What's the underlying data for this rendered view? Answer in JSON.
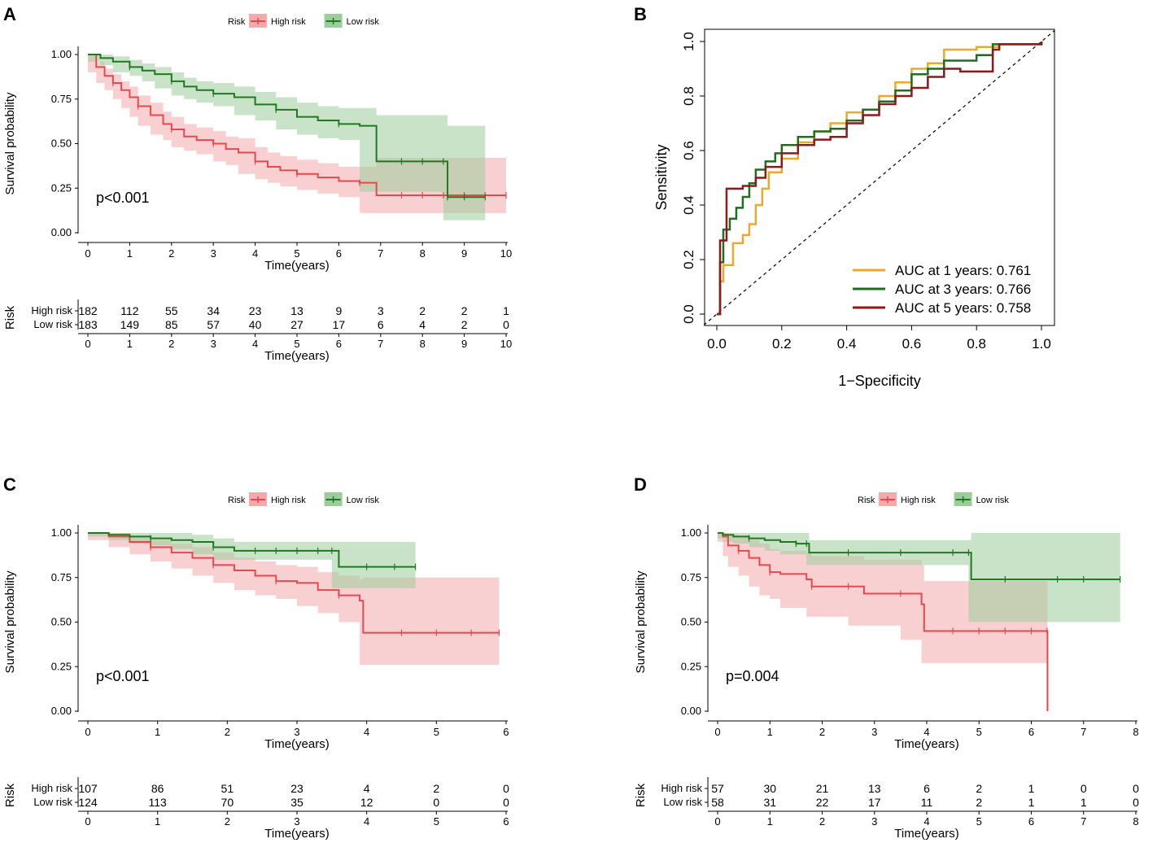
{
  "colors": {
    "high": "#e5484d",
    "low": "#1f7a1f",
    "high_fill": "#f4a9ab",
    "low_fill": "#9ccc9c",
    "roc1": "#e8a92e",
    "roc3": "#1f6e1f",
    "roc5": "#8b1a1a"
  },
  "chart_data": [
    {
      "panel": "A",
      "type": "line",
      "legend_title": "Risk",
      "legend": [
        "High risk",
        "Low risk"
      ],
      "ylabel": "Survival probability",
      "xlabel": "Time(years)",
      "xlim": [
        0,
        10
      ],
      "ylim": [
        0,
        1
      ],
      "xticks": [
        "0",
        "1",
        "2",
        "3",
        "4",
        "5",
        "6",
        "7",
        "8",
        "9",
        "10"
      ],
      "yticks": [
        "0.00",
        "0.25",
        "0.50",
        "0.75",
        "1.00"
      ],
      "pvalue": "p<0.001",
      "series": [
        {
          "name": "High risk",
          "x": [
            0,
            0.2,
            0.4,
            0.6,
            0.8,
            1.0,
            1.2,
            1.5,
            1.8,
            2.0,
            2.3,
            2.6,
            3.0,
            3.3,
            3.6,
            4.0,
            4.3,
            4.6,
            5.0,
            5.5,
            6.0,
            6.5,
            6.9,
            7.5,
            8.0,
            8.5,
            9.0,
            9.5,
            10.0
          ],
          "y": [
            1.0,
            0.93,
            0.88,
            0.84,
            0.8,
            0.76,
            0.71,
            0.66,
            0.61,
            0.58,
            0.54,
            0.52,
            0.5,
            0.47,
            0.45,
            0.4,
            0.37,
            0.35,
            0.33,
            0.31,
            0.29,
            0.28,
            0.21,
            0.21,
            0.21,
            0.21,
            0.21,
            0.21,
            0.21
          ],
          "lower": [
            1.0,
            0.9,
            0.84,
            0.8,
            0.75,
            0.7,
            0.65,
            0.6,
            0.55,
            0.52,
            0.48,
            0.46,
            0.44,
            0.4,
            0.38,
            0.33,
            0.3,
            0.28,
            0.26,
            0.24,
            0.22,
            0.2,
            0.11,
            0.11,
            0.11,
            0.11,
            0.11,
            0.11,
            0.11
          ],
          "upper": [
            1.0,
            0.96,
            0.92,
            0.89,
            0.85,
            0.82,
            0.77,
            0.73,
            0.68,
            0.65,
            0.61,
            0.59,
            0.57,
            0.54,
            0.53,
            0.48,
            0.45,
            0.43,
            0.41,
            0.39,
            0.37,
            0.37,
            0.42,
            0.42,
            0.42,
            0.42,
            0.42,
            0.42,
            0.42
          ]
        },
        {
          "name": "Low risk",
          "x": [
            0,
            0.3,
            0.6,
            1.0,
            1.3,
            1.6,
            2.0,
            2.3,
            2.6,
            3.0,
            3.5,
            4.0,
            4.5,
            5.0,
            5.5,
            6.0,
            6.5,
            6.9,
            7.5,
            8.0,
            8.5,
            8.6,
            9.0,
            9.5
          ],
          "y": [
            1.0,
            0.98,
            0.96,
            0.93,
            0.91,
            0.89,
            0.85,
            0.82,
            0.8,
            0.78,
            0.76,
            0.72,
            0.69,
            0.65,
            0.63,
            0.61,
            0.6,
            0.4,
            0.4,
            0.4,
            0.4,
            0.2,
            0.2,
            0.2
          ],
          "lower": [
            1.0,
            0.96,
            0.94,
            0.9,
            0.88,
            0.85,
            0.81,
            0.77,
            0.75,
            0.73,
            0.71,
            0.66,
            0.63,
            0.58,
            0.55,
            0.53,
            0.52,
            0.23,
            0.23,
            0.23,
            0.23,
            0.07,
            0.07,
            0.07
          ],
          "upper": [
            1.0,
            1.0,
            0.99,
            0.97,
            0.95,
            0.93,
            0.9,
            0.87,
            0.85,
            0.84,
            0.82,
            0.79,
            0.76,
            0.73,
            0.71,
            0.7,
            0.7,
            0.66,
            0.66,
            0.66,
            0.66,
            0.6,
            0.6,
            0.6
          ]
        }
      ],
      "risk_table": {
        "row_labels": [
          "High risk",
          "Low risk"
        ],
        "axis_label": "Risk",
        "rows": [
          [
            "182",
            "112",
            "55",
            "34",
            "23",
            "13",
            "9",
            "3",
            "2",
            "2",
            "1"
          ],
          [
            "183",
            "149",
            "85",
            "57",
            "40",
            "27",
            "17",
            "6",
            "4",
            "2",
            "0"
          ]
        ]
      }
    },
    {
      "panel": "B",
      "type": "line",
      "xlabel": "1−Specificity",
      "ylabel": "Sensitivity",
      "xlim": [
        0,
        1
      ],
      "ylim": [
        0,
        1
      ],
      "xticks": [
        "0.0",
        "0.2",
        "0.4",
        "0.6",
        "0.8",
        "1.0"
      ],
      "yticks": [
        "0.0",
        "0.2",
        "0.4",
        "0.6",
        "0.8",
        "1.0"
      ],
      "series": [
        {
          "name": "AUC at 1 years: 0.761",
          "x": [
            0,
            0.01,
            0.02,
            0.05,
            0.08,
            0.1,
            0.12,
            0.14,
            0.16,
            0.2,
            0.25,
            0.3,
            0.35,
            0.4,
            0.45,
            0.5,
            0.55,
            0.6,
            0.65,
            0.7,
            0.75,
            0.8,
            0.87,
            1.0
          ],
          "y": [
            0,
            0.12,
            0.18,
            0.26,
            0.29,
            0.33,
            0.4,
            0.46,
            0.52,
            0.57,
            0.63,
            0.67,
            0.7,
            0.74,
            0.75,
            0.8,
            0.85,
            0.9,
            0.92,
            0.97,
            0.97,
            0.98,
            0.99,
            1.0
          ]
        },
        {
          "name": "AUC at 3 years: 0.766",
          "x": [
            0,
            0.01,
            0.02,
            0.04,
            0.06,
            0.08,
            0.1,
            0.12,
            0.15,
            0.18,
            0.2,
            0.25,
            0.3,
            0.35,
            0.4,
            0.45,
            0.5,
            0.55,
            0.6,
            0.65,
            0.7,
            0.75,
            0.8,
            0.85,
            1.0
          ],
          "y": [
            0,
            0.19,
            0.31,
            0.35,
            0.39,
            0.43,
            0.48,
            0.53,
            0.56,
            0.59,
            0.62,
            0.65,
            0.67,
            0.68,
            0.71,
            0.75,
            0.78,
            0.82,
            0.88,
            0.9,
            0.93,
            0.93,
            0.95,
            0.99,
            1.0
          ]
        },
        {
          "name": "AUC at 5 years: 0.758",
          "x": [
            0,
            0.01,
            0.03,
            0.08,
            0.12,
            0.15,
            0.2,
            0.25,
            0.3,
            0.35,
            0.4,
            0.45,
            0.5,
            0.55,
            0.6,
            0.65,
            0.7,
            0.75,
            0.8,
            0.85,
            0.87,
            1.0
          ],
          "y": [
            0,
            0.27,
            0.46,
            0.47,
            0.5,
            0.54,
            0.59,
            0.62,
            0.64,
            0.65,
            0.7,
            0.73,
            0.77,
            0.8,
            0.83,
            0.87,
            0.9,
            0.89,
            0.89,
            0.97,
            0.99,
            1.0
          ]
        }
      ]
    },
    {
      "panel": "C",
      "type": "line",
      "legend_title": "Risk",
      "legend": [
        "High risk",
        "Low risk"
      ],
      "ylabel": "Survival probability",
      "xlabel": "Time(years)",
      "xlim": [
        0,
        6
      ],
      "ylim": [
        0,
        1
      ],
      "xticks": [
        "0",
        "1",
        "2",
        "3",
        "4",
        "5",
        "6"
      ],
      "yticks": [
        "0.00",
        "0.25",
        "0.50",
        "0.75",
        "1.00"
      ],
      "pvalue": "p<0.001",
      "series": [
        {
          "name": "High risk",
          "x": [
            0,
            0.3,
            0.6,
            0.9,
            1.2,
            1.5,
            1.8,
            2.1,
            2.4,
            2.7,
            3.0,
            3.3,
            3.6,
            3.9,
            3.95,
            4.5,
            5.0,
            5.5,
            5.9
          ],
          "y": [
            1.0,
            0.98,
            0.95,
            0.92,
            0.89,
            0.86,
            0.82,
            0.79,
            0.76,
            0.73,
            0.72,
            0.68,
            0.65,
            0.62,
            0.44,
            0.44,
            0.44,
            0.44,
            0.44
          ],
          "lower": [
            1.0,
            0.96,
            0.92,
            0.88,
            0.84,
            0.8,
            0.76,
            0.72,
            0.68,
            0.65,
            0.63,
            0.59,
            0.55,
            0.5,
            0.26,
            0.26,
            0.26,
            0.26,
            0.26
          ],
          "upper": [
            1.0,
            1.0,
            0.98,
            0.96,
            0.94,
            0.92,
            0.89,
            0.86,
            0.84,
            0.82,
            0.81,
            0.78,
            0.76,
            0.74,
            0.75,
            0.75,
            0.75,
            0.75,
            0.75
          ]
        },
        {
          "name": "Low risk",
          "x": [
            0,
            0.3,
            0.6,
            0.9,
            1.2,
            1.5,
            1.8,
            2.1,
            2.4,
            2.7,
            3.0,
            3.3,
            3.5,
            3.6,
            4.0,
            4.4,
            4.7
          ],
          "y": [
            1.0,
            0.99,
            0.98,
            0.97,
            0.96,
            0.95,
            0.92,
            0.9,
            0.9,
            0.9,
            0.9,
            0.9,
            0.9,
            0.81,
            0.81,
            0.81,
            0.81
          ],
          "lower": [
            1.0,
            0.98,
            0.96,
            0.94,
            0.93,
            0.91,
            0.88,
            0.85,
            0.85,
            0.85,
            0.85,
            0.85,
            0.85,
            0.69,
            0.69,
            0.69,
            0.69
          ],
          "upper": [
            1.0,
            1.0,
            1.0,
            1.0,
            1.0,
            0.99,
            0.97,
            0.95,
            0.95,
            0.95,
            0.95,
            0.95,
            0.95,
            0.95,
            0.95,
            0.95,
            0.95
          ]
        }
      ],
      "risk_table": {
        "row_labels": [
          "High risk",
          "Low risk"
        ],
        "axis_label": "Risk",
        "rows": [
          [
            "107",
            "86",
            "51",
            "23",
            "4",
            "2",
            "0"
          ],
          [
            "124",
            "113",
            "70",
            "35",
            "12",
            "0",
            "0"
          ]
        ]
      }
    },
    {
      "panel": "D",
      "type": "line",
      "legend_title": "Risk",
      "legend": [
        "High risk",
        "Low risk"
      ],
      "ylabel": "Survival probability",
      "xlabel": "Time(years)",
      "xlim": [
        0,
        8
      ],
      "ylim": [
        0,
        1
      ],
      "xticks": [
        "0",
        "1",
        "2",
        "3",
        "4",
        "5",
        "6",
        "7",
        "8"
      ],
      "yticks": [
        "0.00",
        "0.25",
        "0.50",
        "0.75",
        "1.00"
      ],
      "pvalue": "p=0.004",
      "series": [
        {
          "name": "High risk",
          "x": [
            0,
            0.1,
            0.2,
            0.4,
            0.6,
            0.8,
            1.0,
            1.2,
            1.7,
            1.8,
            2.5,
            2.8,
            3.5,
            3.9,
            3.95,
            4.5,
            5.0,
            5.5,
            6.0,
            6.3,
            6.31
          ],
          "y": [
            1.0,
            0.98,
            0.93,
            0.9,
            0.86,
            0.82,
            0.78,
            0.77,
            0.74,
            0.7,
            0.7,
            0.66,
            0.66,
            0.6,
            0.45,
            0.45,
            0.45,
            0.45,
            0.45,
            0.45,
            0.0
          ],
          "lower": [
            1.0,
            0.95,
            0.87,
            0.81,
            0.76,
            0.7,
            0.65,
            0.63,
            0.58,
            0.53,
            0.53,
            0.48,
            0.48,
            0.4,
            0.27,
            0.27,
            0.27,
            0.27,
            0.27,
            0.27,
            0.27
          ],
          "upper": [
            1.0,
            1.0,
            0.99,
            0.98,
            0.96,
            0.94,
            0.91,
            0.9,
            0.89,
            0.87,
            0.87,
            0.85,
            0.85,
            0.82,
            0.73,
            0.73,
            0.73,
            0.73,
            0.73,
            0.73,
            0.73
          ]
        },
        {
          "name": "Low risk",
          "x": [
            0,
            0.1,
            0.3,
            0.6,
            0.9,
            1.2,
            1.5,
            1.7,
            1.75,
            2.5,
            3.5,
            4.5,
            4.8,
            4.85,
            5.5,
            6.5,
            7.0,
            7.7
          ],
          "y": [
            1.0,
            0.99,
            0.98,
            0.97,
            0.96,
            0.95,
            0.94,
            0.94,
            0.89,
            0.89,
            0.89,
            0.89,
            0.89,
            0.74,
            0.74,
            0.74,
            0.74,
            0.74
          ],
          "lower": [
            1.0,
            0.97,
            0.95,
            0.94,
            0.92,
            0.9,
            0.88,
            0.88,
            0.82,
            0.82,
            0.82,
            0.82,
            0.82,
            0.5,
            0.5,
            0.5,
            0.5,
            0.5
          ],
          "upper": [
            1.0,
            1.0,
            1.0,
            1.0,
            1.0,
            1.0,
            1.0,
            1.0,
            0.96,
            0.96,
            0.96,
            0.96,
            0.96,
            1.0,
            1.0,
            1.0,
            1.0,
            1.0
          ]
        }
      ],
      "risk_table": {
        "row_labels": [
          "High risk",
          "Low risk"
        ],
        "axis_label": "Risk",
        "rows": [
          [
            "57",
            "30",
            "21",
            "13",
            "6",
            "2",
            "1",
            "0",
            "0"
          ],
          [
            "58",
            "31",
            "22",
            "17",
            "11",
            "2",
            "1",
            "1",
            "0"
          ]
        ]
      }
    }
  ]
}
